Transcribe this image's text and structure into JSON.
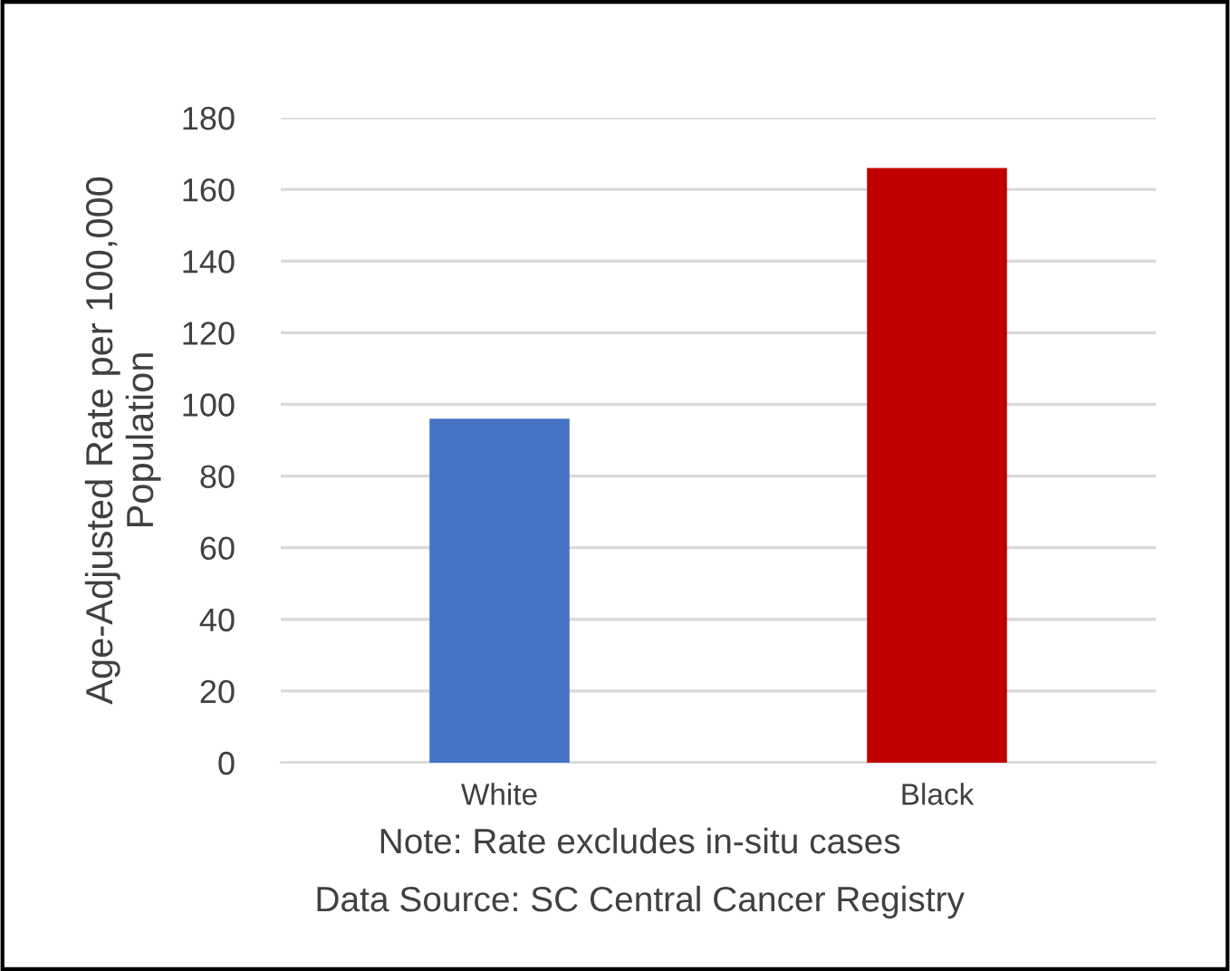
{
  "chart_data": {
    "type": "bar",
    "ylabel": "Age-Adjusted Rate per 100,000\nPopulation",
    "categories": [
      "White",
      "Black"
    ],
    "values": [
      96,
      166
    ],
    "colors": [
      "#4472c4",
      "#c00000"
    ],
    "ylim": [
      0,
      180
    ],
    "yticks": [
      0,
      20,
      40,
      60,
      80,
      100,
      120,
      140,
      160,
      180
    ],
    "grid": "y",
    "annotations": [
      "Note: Rate excludes in-situ cases",
      "Data Source: SC Central Cancer Registry"
    ]
  }
}
